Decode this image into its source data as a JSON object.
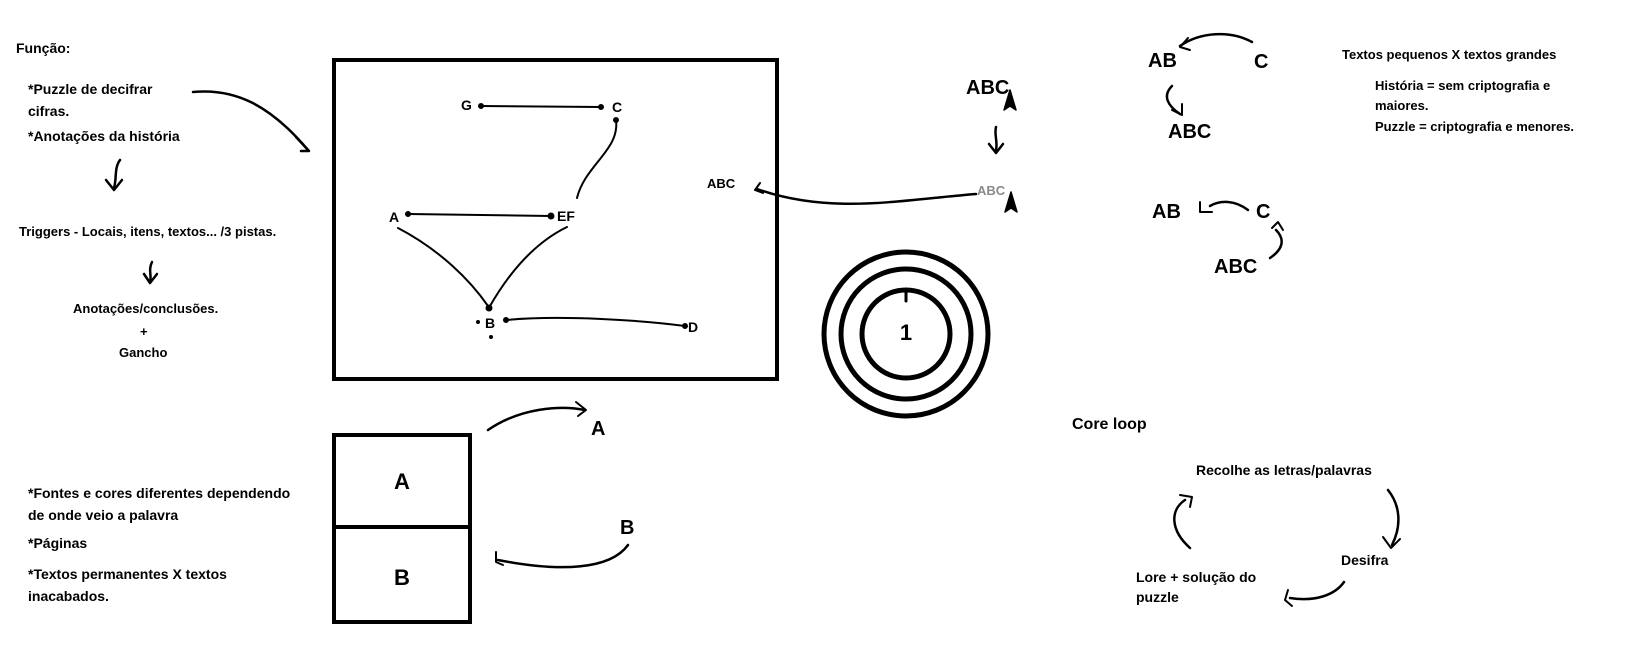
{
  "left_notes": {
    "funcao_title": "Função:",
    "bullet_1_line1": "*Puzzle de decifrar",
    "bullet_1_line2": "cifras.",
    "bullet_2": "*Anotações da história",
    "triggers": "Triggers - Locais, itens, textos... /3 pistas.",
    "anotacoes": "Anotações/conclusões.",
    "plus": "+",
    "gancho": "Gancho"
  },
  "graph": {
    "nodes": {
      "G": "G",
      "C": "C",
      "A": "A",
      "EF": "EF",
      "B": "B",
      "D": "D"
    }
  },
  "pages": {
    "page_a": "A",
    "page_b": "B",
    "label_a": "A",
    "label_b": "B"
  },
  "bottom_notes": {
    "fontes_line1": "*Fontes e cores diferentes dependendo",
    "fontes_line2": "de onde veio a palavra",
    "paginas": "*Páginas",
    "textos_line1": "*Textos permanentes X textos",
    "textos_line2": "inacabados."
  },
  "cursor_demo": {
    "abc_top": "ABC",
    "abc_gray": "ABC",
    "abc_small": "ABC"
  },
  "target": {
    "number": "1"
  },
  "merge_demo_1": {
    "ab": "AB",
    "c": "C",
    "abc": "ABC"
  },
  "merge_demo_2": {
    "ab": "AB",
    "c": "C",
    "abc": "ABC"
  },
  "text_sizes": {
    "title": "Textos pequenos X textos grandes",
    "historia_line1": "História = sem criptografia e",
    "historia_line2": "maiores.",
    "puzzle": "Puzzle = criptografia e menores."
  },
  "core_loop": {
    "title": "Core loop",
    "recolhe": "Recolhe as letras/palavras",
    "desifra": "Desifra",
    "lore_line1": "Lore + solução do",
    "lore_line2": "puzzle"
  }
}
